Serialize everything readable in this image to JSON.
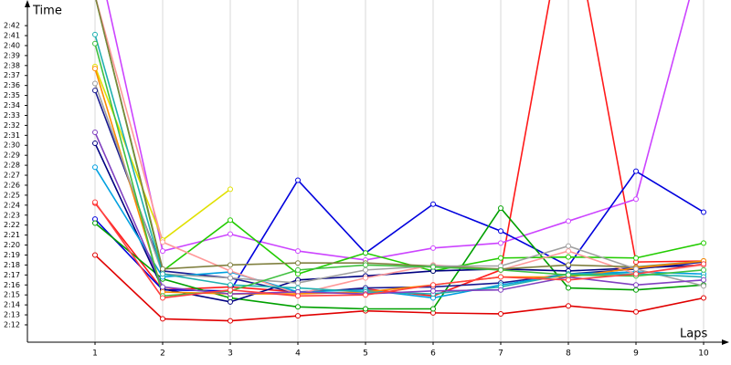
{
  "chart_data": {
    "type": "line",
    "y_title": "Time",
    "x_title": "Laps",
    "x": [
      1,
      2,
      3,
      4,
      5,
      6,
      7,
      8,
      9,
      10
    ],
    "xlim": [
      0,
      10.27
    ],
    "xticks": [
      1,
      2,
      3,
      4,
      5,
      6,
      7,
      8,
      9,
      10
    ],
    "ylim": [
      130.26,
      164.57
    ],
    "yticks": [
      {
        "value": 132,
        "label": "2:12"
      },
      {
        "value": 133,
        "label": "2:13"
      },
      {
        "value": 134,
        "label": "2:14"
      },
      {
        "value": 135,
        "label": "2:15"
      },
      {
        "value": 136,
        "label": "2:16"
      },
      {
        "value": 137,
        "label": "2:17"
      },
      {
        "value": 138,
        "label": "2:18"
      },
      {
        "value": 139,
        "label": "2:19"
      },
      {
        "value": 140,
        "label": "2:20"
      },
      {
        "value": 141,
        "label": "2:21"
      },
      {
        "value": 142,
        "label": "2:22"
      },
      {
        "value": 143,
        "label": "2:23"
      },
      {
        "value": 144,
        "label": "2:24"
      },
      {
        "value": 145,
        "label": "2:25"
      },
      {
        "value": 146,
        "label": "2:26"
      },
      {
        "value": 147,
        "label": "2:27"
      },
      {
        "value": 148,
        "label": "2:28"
      },
      {
        "value": 149,
        "label": "2:29"
      },
      {
        "value": 150,
        "label": "2:30"
      },
      {
        "value": 151,
        "label": "2:31"
      },
      {
        "value": 152,
        "label": "2:32"
      },
      {
        "value": 153,
        "label": "2:33"
      },
      {
        "value": 154,
        "label": "2:34"
      },
      {
        "value": 155,
        "label": "2:35"
      },
      {
        "value": 156,
        "label": "2:36"
      },
      {
        "value": 157,
        "label": "2:37"
      },
      {
        "value": 158,
        "label": "2:38"
      },
      {
        "value": 159,
        "label": "2:39"
      },
      {
        "value": 160,
        "label": "2:40"
      },
      {
        "value": 161,
        "label": "2:41"
      },
      {
        "value": 162,
        "label": "2:42"
      }
    ],
    "grid": true,
    "series": [
      {
        "color": "#e00000",
        "values": [
          139.0,
          132.6,
          132.4,
          132.9,
          133.4,
          133.2,
          133.1,
          133.9,
          133.3,
          134.7
        ]
      },
      {
        "color": "#ff1a1a",
        "values": [
          144.2,
          135.5,
          135.8,
          135.3,
          135.6,
          134.9,
          137.5,
          175,
          138.3,
          138.4
        ]
      },
      {
        "color": "#cc44ff",
        "values": [
          170,
          139.4,
          141.1,
          139.4,
          138.5,
          139.7,
          140.2,
          142.4,
          144.6,
          170
        ]
      },
      {
        "color": "#0000dd",
        "values": [
          142.6,
          135.5,
          135.4,
          146.5,
          139.2,
          144.1,
          141.4,
          137.9,
          147.4,
          143.3
        ]
      },
      {
        "color": "#00a000",
        "values": [
          142.2,
          136.6,
          134.7,
          133.8,
          133.6,
          133.6,
          143.7,
          135.7,
          135.5,
          136.0
        ]
      },
      {
        "color": "#22cc00",
        "values": [
          165,
          137.4,
          142.5,
          137.1,
          139.2,
          137.4,
          138.7,
          138.8,
          138.7,
          140.2
        ]
      },
      {
        "color": "#e0e000",
        "values": [
          157.9,
          140.5,
          145.6,
          null,
          null,
          null,
          null,
          null,
          null,
          null
        ]
      },
      {
        "color": "#000080",
        "values": [
          150.2,
          135.6,
          134.3,
          136.5,
          136.9,
          137.4,
          137.6,
          137.4,
          137.7,
          138.0
        ]
      },
      {
        "color": "#1a1a90",
        "values": [
          155.5,
          137.4,
          136.7,
          135.2,
          135.7,
          135.8,
          136.2,
          137.1,
          137.6,
          138.3
        ]
      },
      {
        "color": "#00a0e0",
        "values": [
          147.8,
          136.8,
          137.3,
          135.3,
          135.5,
          134.7,
          136.0,
          137.1,
          137.3,
          137.1
        ]
      },
      {
        "color": "#ff9999",
        "values": [
          165,
          140.3,
          137.4,
          135.1,
          136.7,
          138.0,
          137.5,
          139.4,
          137.1,
          138.0
        ]
      },
      {
        "color": "#808040",
        "values": [
          165,
          137.6,
          138.0,
          138.2,
          138.2,
          137.9,
          137.6,
          138.0,
          137.8,
          138.4
        ]
      },
      {
        "color": "#ff8c00",
        "values": [
          157.7,
          135.3,
          135.1,
          135.1,
          135.3,
          136.0,
          136.8,
          136.8,
          137.7,
          138.4
        ]
      },
      {
        "color": "#a0a0a0",
        "values": [
          156.2,
          137.1,
          136.7,
          136.2,
          137.5,
          137.9,
          137.9,
          139.9,
          137.6,
          135.9
        ]
      },
      {
        "color": "#20b0b0",
        "values": [
          161.1,
          137.1,
          136.0,
          135.7,
          135.3,
          135.1,
          135.8,
          137.1,
          137.1,
          136.8
        ]
      },
      {
        "color": "#8040c0",
        "values": [
          151.3,
          135.8,
          135.1,
          135.3,
          135.1,
          135.4,
          135.5,
          136.8,
          136.0,
          136.5
        ]
      },
      {
        "color": "#40c040",
        "values": [
          160.2,
          134.9,
          135.4,
          137.5,
          138.0,
          137.8,
          137.5,
          137.0,
          136.9,
          137.5
        ]
      },
      {
        "color": "#ff4040",
        "values": [
          144.3,
          134.7,
          135.5,
          134.9,
          135.0,
          136.0,
          136.8,
          136.5,
          137.1,
          138.1
        ]
      }
    ]
  }
}
